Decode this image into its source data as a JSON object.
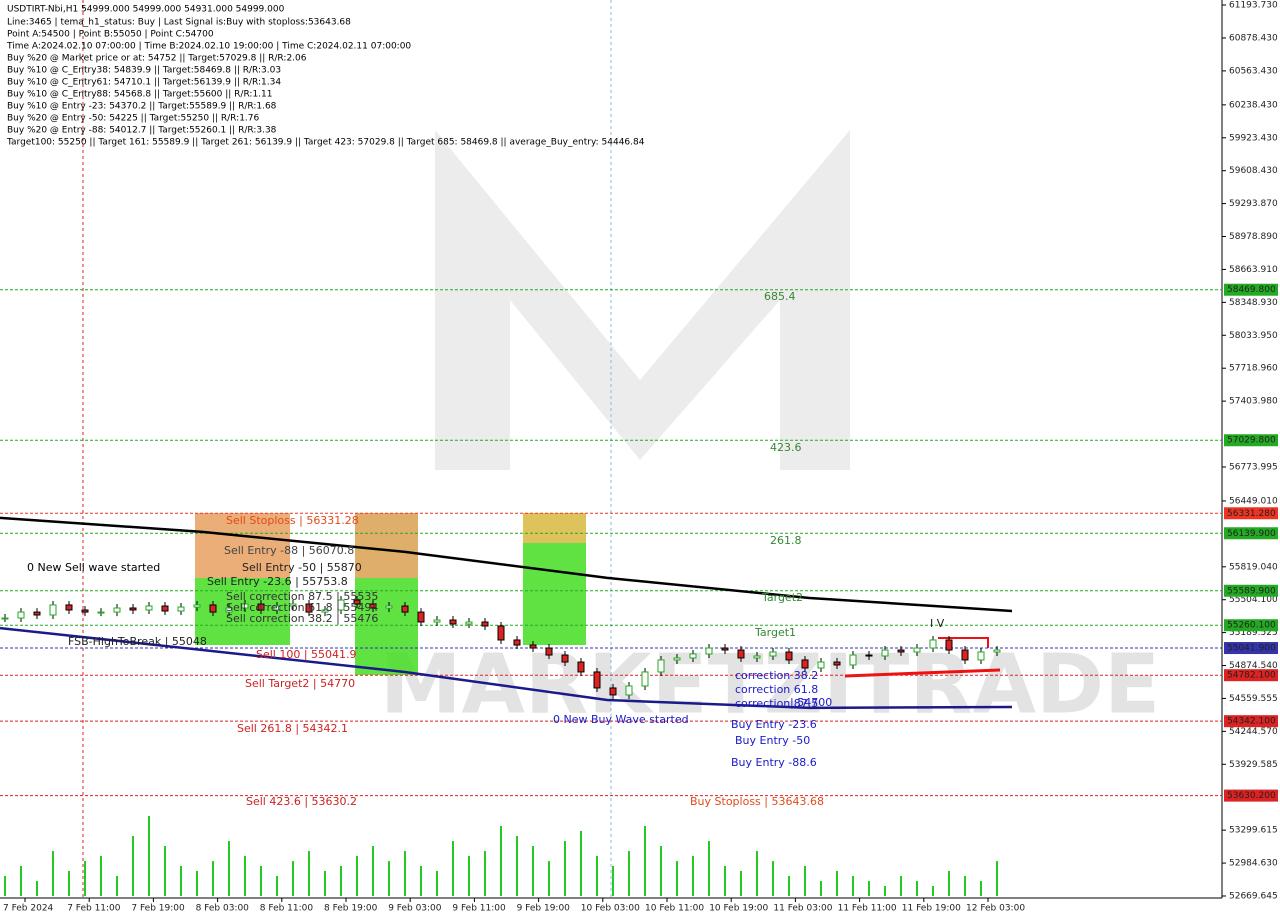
{
  "chart_data": {
    "type": "candlestick",
    "title": "USDTIRT-Nbi,H1  54999.000 54999.000 54931.000 54999.000",
    "header_lines": [
      "Line:3465 | tema_h1_status: Buy | Last Signal is:Buy with stoploss:53643.68",
      "Point A:54500 | Point B:55050 | Point C:54700",
      "Time A:2024.02.10 07:00:00 | Time B:2024.02.10 19:00:00 | Time C:2024.02.11 07:00:00",
      "Buy %20 @ Market price or at: 54752 || Target:57029.8 || R/R:2.06",
      "Buy %10 @ C_Entry38: 54839.9 || Target:58469.8 || R/R:3.03",
      "Buy %10 @ C_Entry61: 54710.1 || Target:56139.9 || R/R:1.34",
      "Buy %10 @ C_Entry88: 54568.8 || Target:55600 || R/R:1.11",
      "Buy %10 @ Entry -23: 54370.2 || Target:55589.9 || R/R:1.68",
      "Buy %20 @ Entry -50: 54225 || Target:55250 || R/R:1.76",
      "Buy %20 @ Entry -88: 54012.7 || Target:55260.1 || R/R:3.38",
      "Target100: 55250 || Target 161: 55589.9 || Target 261: 56139.9 || Target 423: 57029.8 || Target 685: 58469.8 || average_Buy_entry: 54446.84"
    ],
    "watermark": "MARKETZITRADE",
    "ylim": [
      52669.645,
      61193.73
    ],
    "yticks": [
      {
        "value": 61193.73,
        "label": "61193.730"
      },
      {
        "value": 60878.43,
        "label": "60878.430"
      },
      {
        "value": 60563.43,
        "label": "60563.430"
      },
      {
        "value": 60238.43,
        "label": "60238.430"
      },
      {
        "value": 59923.43,
        "label": "59923.430"
      },
      {
        "value": 59608.43,
        "label": "59608.430"
      },
      {
        "value": 59293.87,
        "label": "59293.870"
      },
      {
        "value": 58978.89,
        "label": "58978.890"
      },
      {
        "value": 58663.91,
        "label": "58663.910"
      },
      {
        "value": 58348.93,
        "label": "58348.930"
      },
      {
        "value": 58033.95,
        "label": "58033.950"
      },
      {
        "value": 57718.96,
        "label": "57718.960"
      },
      {
        "value": 57403.98,
        "label": "57403.980"
      },
      {
        "value": 56773.995,
        "label": "56773.995"
      },
      {
        "value": 56449.01,
        "label": "56449.010"
      },
      {
        "value": 55819.04,
        "label": "55819.040"
      },
      {
        "value": 55504.1,
        "label": "55504.100"
      },
      {
        "value": 55189.525,
        "label": "55189.525"
      },
      {
        "value": 54874.54,
        "label": "54874.540"
      },
      {
        "value": 54559.555,
        "label": "54559.555"
      },
      {
        "value": 54244.57,
        "label": "54244.570"
      },
      {
        "value": 53929.585,
        "label": "53929.585"
      },
      {
        "value": 53299.615,
        "label": "53299.615"
      },
      {
        "value": 52984.63,
        "label": "52984.630"
      },
      {
        "value": 52669.645,
        "label": "52669.645"
      }
    ],
    "levels": [
      {
        "value": 58469.8,
        "label": "58469.800",
        "color": "#22aa22"
      },
      {
        "value": 57029.8,
        "label": "57029.800",
        "color": "#22aa22"
      },
      {
        "value": 56331.28,
        "label": "56331.280",
        "color": "#ee3322"
      },
      {
        "value": 56139.9,
        "label": "56139.900",
        "color": "#22aa22"
      },
      {
        "value": 55589.9,
        "label": "55589.900",
        "color": "#22aa22"
      },
      {
        "value": 55260.1,
        "label": "55260.100",
        "color": "#22aa22"
      },
      {
        "value": 55041.9,
        "label": "55041.900",
        "color": "#3333aa"
      },
      {
        "value": 54782.1,
        "label": "54782.100",
        "color": "#dd2222"
      },
      {
        "value": 54342.1,
        "label": "54342.100",
        "color": "#dd2222"
      },
      {
        "value": 53630.2,
        "label": "53630.200",
        "color": "#dd2222"
      }
    ],
    "categories": [
      "7 Feb 2024",
      "7 Feb 11:00",
      "7 Feb 19:00",
      "8 Feb 03:00",
      "8 Feb 11:00",
      "8 Feb 19:00",
      "9 Feb 03:00",
      "9 Feb 11:00",
      "9 Feb 19:00",
      "10 Feb 03:00",
      "10 Feb 11:00",
      "10 Feb 19:00",
      "11 Feb 03:00",
      "11 Feb 11:00",
      "11 Feb 19:00",
      "12 Feb 03:00"
    ],
    "closes": [
      55329,
      55386,
      55358,
      55454,
      55406,
      55386,
      55386,
      55425,
      55406,
      55444,
      55396,
      55434,
      55454,
      55386,
      55425,
      55463,
      55406,
      55444,
      55463,
      55386,
      55406,
      55501,
      55463,
      55425,
      55444,
      55386,
      55291,
      55310,
      55272,
      55291,
      55253,
      55119,
      55071,
      55042,
      54975,
      54908,
      54813,
      54660,
      54593,
      54679,
      54813,
      54928,
      54947,
      54985,
      55042,
      55023,
      54947,
      54966,
      55004,
      54928,
      54851,
      54908,
      54880,
      54975,
      54966,
      55023,
      55004,
      55042,
      55119,
      55023,
      54928,
      55004,
      55023
    ],
    "volumes": [
      20,
      30,
      15,
      45,
      25,
      35,
      40,
      20,
      60,
      80,
      50,
      30,
      25,
      35,
      55,
      40,
      30,
      20,
      35,
      45,
      25,
      30,
      40,
      50,
      35,
      45,
      30,
      25,
      55,
      40,
      45,
      70,
      60,
      50,
      35,
      55,
      65,
      40,
      30,
      45,
      70,
      50,
      35,
      40,
      55,
      30,
      25,
      45,
      35,
      20,
      30,
      15,
      25,
      20,
      15,
      10,
      20,
      15,
      10,
      25,
      20,
      15,
      35
    ],
    "ma_slow": {
      "color": "#000000",
      "values": [
        56287,
        56153,
        55962,
        55713,
        55521,
        55396
      ]
    },
    "ma_fast": {
      "color": "#1a1a8a",
      "values": [
        55233,
        55023,
        54813,
        54545,
        54469,
        54478
      ]
    },
    "annotations": [
      {
        "text": "0 New Sell wave started",
        "color": "#000000"
      },
      {
        "text": "FSB-HighToBreak | 55048",
        "color": "#222222"
      },
      {
        "text": "Sell Stoploss | 56331.28",
        "color": "#e24a1a"
      },
      {
        "text": "Sell Entry -88 | 56070.8",
        "color": "#444444"
      },
      {
        "text": "Sell Entry -50 | 55870",
        "color": "#222222"
      },
      {
        "text": "Sell Entry -23.6 | 55753.8",
        "color": "#222222"
      },
      {
        "text": "Sell correction 87.5 | 55535",
        "color": "#333333"
      },
      {
        "text": "Sell correction 61.8 | 55494",
        "color": "#333333"
      },
      {
        "text": "Sell correction 38.2 | 55476",
        "color": "#333333"
      },
      {
        "text": "Sell 100 | 55041.9",
        "color": "#cc2222"
      },
      {
        "text": "Sell Target2 | 54770",
        "color": "#cc2222"
      },
      {
        "text": "Sell 261.8 | 54342.1",
        "color": "#cc2222"
      },
      {
        "text": "Sell 423.6 | 53630.2",
        "color": "#cc2222"
      },
      {
        "text": "685.4",
        "color": "#338833"
      },
      {
        "text": "423.6",
        "color": "#338833"
      },
      {
        "text": "261.8",
        "color": "#338833"
      },
      {
        "text": "Target2",
        "color": "#338833"
      },
      {
        "text": "Target1",
        "color": "#338833"
      },
      {
        "text": "0 New Buy Wave started",
        "color": "#1a1acc"
      },
      {
        "text": "correction 38.2",
        "color": "#1a1acc"
      },
      {
        "text": "correction 61.8",
        "color": "#1a1acc"
      },
      {
        "text": "correction 87.5",
        "color": "#1a1acc"
      },
      {
        "text": "| 54700",
        "color": "#1a1acc"
      },
      {
        "text": "Buy Entry -23.6",
        "color": "#1a1acc"
      },
      {
        "text": "Buy Entry -50",
        "color": "#1a1acc"
      },
      {
        "text": "Buy Entry -88.6",
        "color": "#1a1acc"
      },
      {
        "text": "Buy Stoploss | 53643.68",
        "color": "#e24a1a"
      },
      {
        "text": "I V",
        "color": "#222222"
      }
    ]
  }
}
